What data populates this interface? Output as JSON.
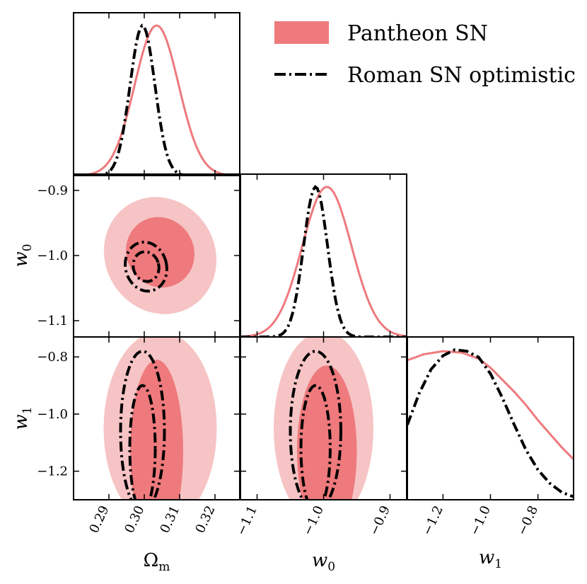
{
  "chart_data": {
    "type": "corner",
    "parameters": [
      {
        "key": "Om",
        "label": "Ω",
        "label_sub": "m",
        "range": [
          0.28,
          0.327
        ],
        "ticks": [
          0.29,
          0.3,
          0.31,
          0.32
        ],
        "tick_labels": [
          "0.29",
          "0.30",
          "0.31",
          "0.32"
        ]
      },
      {
        "key": "w0",
        "label": "w",
        "label_sub": "0",
        "range": [
          -1.125,
          -0.875
        ],
        "ticks": [
          -1.1,
          -1.0,
          -0.9
        ],
        "tick_labels": [
          "−1.1",
          "−1.0",
          "−0.9"
        ]
      },
      {
        "key": "w1",
        "label": "w",
        "label_sub": "1",
        "range": [
          -1.3,
          -0.73
        ],
        "ticks": [
          -1.2,
          -1.0,
          -0.8
        ],
        "tick_labels": [
          "−1.2",
          "−1.0",
          "−0.8"
        ]
      }
    ],
    "x_axis_w1": {
      "range": [
        -1.35,
        -0.65
      ],
      "ticks": [
        -1.2,
        -1.0,
        -0.8
      ],
      "tick_labels": [
        "−1.2",
        "−1.0",
        "−0.8"
      ]
    },
    "series": [
      {
        "name": "Pantheon SN",
        "style": "filled",
        "color": "#ee7a7d",
        "color_light": "#f6c4c5"
      },
      {
        "name": "Roman SN optimistic",
        "style": "dashdot",
        "color": "#000000"
      }
    ],
    "marginals": {
      "Om": [
        {
          "series": "Pantheon SN",
          "mean": 0.3035,
          "sigma": 0.0062
        },
        {
          "series": "Roman SN optimistic",
          "mean": 0.2995,
          "sigma": 0.0035
        }
      ],
      "w0": [
        {
          "series": "Pantheon SN",
          "mean": -0.995,
          "sigma": 0.037
        },
        {
          "series": "Roman SN optimistic",
          "mean": -1.012,
          "sigma": 0.018
        }
      ],
      "w1": [
        {
          "series": "Pantheon SN",
          "x": [
            -1.35,
            -1.28,
            -1.2,
            -1.12,
            -1.05,
            -1.0,
            -0.95,
            -0.9,
            -0.85,
            -0.8,
            -0.75,
            -0.7,
            -0.65
          ],
          "y": [
            0.93,
            0.97,
            0.99,
            0.98,
            0.94,
            0.88,
            0.8,
            0.72,
            0.63,
            0.53,
            0.44,
            0.35,
            0.27
          ]
        },
        {
          "series": "Roman SN optimistic",
          "x": [
            -1.35,
            -1.3,
            -1.25,
            -1.2,
            -1.15,
            -1.1,
            -1.05,
            -1.0,
            -0.95,
            -0.9,
            -0.85,
            -0.8,
            -0.75,
            -0.7,
            -0.65
          ],
          "y": [
            0.5,
            0.71,
            0.87,
            0.96,
            1.0,
            0.99,
            0.95,
            0.84,
            0.68,
            0.5,
            0.33,
            0.2,
            0.11,
            0.05,
            0.02
          ]
        }
      ]
    },
    "contours_2d": {
      "w0_vs_Om": [
        {
          "series": "Pantheon SN",
          "level": "95%",
          "cx": 0.3045,
          "cy": -1.0,
          "rx": 0.0155,
          "ry": 0.092,
          "rot": -32
        },
        {
          "series": "Pantheon SN",
          "level": "68%",
          "cx": 0.3045,
          "cy": -0.995,
          "rx": 0.0095,
          "ry": 0.055,
          "rot": -32
        },
        {
          "series": "Roman SN optimistic",
          "level": "95%",
          "cx": 0.3005,
          "cy": -1.017,
          "rx": 0.0058,
          "ry": 0.038,
          "rot": -15
        },
        {
          "series": "Roman SN optimistic",
          "level": "68%",
          "cx": 0.3005,
          "cy": -1.017,
          "rx": 0.0036,
          "ry": 0.023,
          "rot": -15
        }
      ],
      "w1_vs_Om": [
        {
          "series": "Pantheon SN",
          "level": "95%",
          "cx": 0.3045,
          "cy": -1.05,
          "rx": 0.016,
          "ry": 0.34,
          "rot": 0
        },
        {
          "series": "Pantheon SN",
          "level": "68%",
          "cx": 0.3035,
          "cy": -1.13,
          "rx": 0.0075,
          "ry": 0.32,
          "rot": 0
        },
        {
          "series": "Roman SN optimistic",
          "level": "95%",
          "cx": 0.2995,
          "cy": -1.06,
          "rx": 0.0062,
          "ry": 0.28,
          "rot": 0
        },
        {
          "series": "Roman SN optimistic",
          "level": "68%",
          "cx": 0.2995,
          "cy": -1.12,
          "rx": 0.0036,
          "ry": 0.22,
          "rot": 0
        }
      ],
      "w1_vs_w0": [
        {
          "series": "Pantheon SN",
          "level": "95%",
          "cx": -1.0,
          "cy": -1.05,
          "rx": 0.075,
          "ry": 0.34,
          "rot": 0
        },
        {
          "series": "Pantheon SN",
          "level": "68%",
          "cx": -0.995,
          "cy": -1.13,
          "rx": 0.045,
          "ry": 0.3,
          "rot": 0
        },
        {
          "series": "Roman SN optimistic",
          "level": "95%",
          "cx": -1.012,
          "cy": -1.06,
          "rx": 0.038,
          "ry": 0.28,
          "rot": 0
        },
        {
          "series": "Roman SN optimistic",
          "level": "68%",
          "cx": -1.012,
          "cy": -1.12,
          "rx": 0.022,
          "ry": 0.22,
          "rot": 0
        }
      ]
    },
    "legend": {
      "position": "top-right",
      "entries": [
        "Pantheon SN",
        "Roman SN optimistic"
      ]
    }
  }
}
